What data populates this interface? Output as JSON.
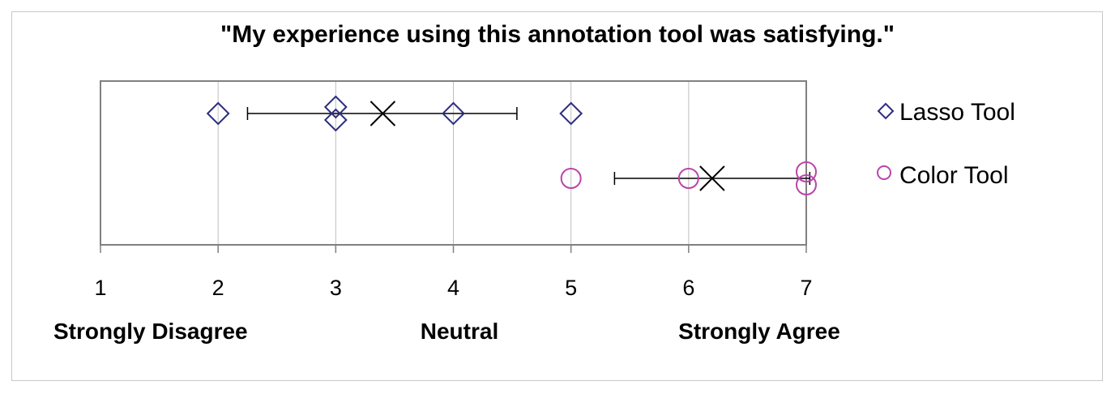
{
  "chart_data": {
    "type": "scatter",
    "title": "\"My experience using this annotation tool was satisfying.\"",
    "xlabel": "",
    "ylabel": "",
    "xlim": [
      1,
      7
    ],
    "xticks": [
      "1",
      "2",
      "3",
      "4",
      "5",
      "6",
      "7"
    ],
    "scale_anchors": [
      {
        "x": 1.0,
        "label": "Strongly Disagree"
      },
      {
        "x": 4.0,
        "label": "Neutral"
      },
      {
        "x": 6.0,
        "label": "Strongly Agree"
      }
    ],
    "grid": "vertical",
    "legend": "right",
    "series": [
      {
        "name": "Lasso Tool",
        "marker": "diamond",
        "color": "#2e2e80",
        "points": [
          2,
          3,
          3,
          4,
          5
        ],
        "mean": 3.4,
        "error_bar": [
          2.25,
          4.54
        ],
        "mean_marker": "x"
      },
      {
        "name": "Color Tool",
        "marker": "circle",
        "color": "#bb44aa",
        "points": [
          5,
          6,
          7,
          7
        ],
        "mean": 6.2,
        "error_bar": [
          5.37,
          7.03
        ],
        "mean_marker": "x"
      }
    ]
  }
}
